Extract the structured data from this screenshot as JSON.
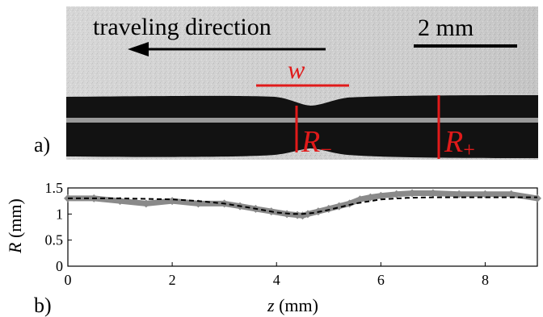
{
  "panel_a": {
    "label": "a)",
    "direction_text": "traveling direction",
    "scale_text": "2 mm",
    "width_symbol": "w",
    "r_minus_base": "R",
    "r_minus_sub": "−",
    "r_plus_base": "R",
    "r_plus_sub": "+",
    "annotation_color": "#e01a1a"
  },
  "panel_b": {
    "label": "b)"
  },
  "chart_data": {
    "type": "line",
    "xlabel_italic": "z",
    "xlabel_unit": " (mm)",
    "ylabel_italic": "R",
    "ylabel_unit": " (mm)",
    "xlim": [
      0,
      9
    ],
    "ylim": [
      0,
      1.5
    ],
    "xticks": [
      "0",
      "2",
      "4",
      "6",
      "8"
    ],
    "yticks": [
      "0",
      "0.5",
      "1",
      "1.5"
    ],
    "grid": false,
    "series": [
      {
        "style": "thick-gray-markers",
        "color": "#8a8a8a",
        "x": [
          0,
          0.5,
          1,
          1.5,
          2,
          2.5,
          3,
          3.3,
          3.6,
          3.9,
          4.2,
          4.4,
          4.5,
          4.6,
          4.8,
          5.0,
          5.2,
          5.4,
          5.6,
          5.8,
          6.0,
          6.3,
          6.6,
          7.0,
          7.5,
          8.0,
          8.5,
          9.0
        ],
        "y": [
          1.3,
          1.3,
          1.25,
          1.2,
          1.25,
          1.2,
          1.2,
          1.15,
          1.1,
          1.05,
          1.0,
          0.98,
          0.97,
          1.0,
          1.05,
          1.1,
          1.15,
          1.2,
          1.28,
          1.32,
          1.35,
          1.38,
          1.4,
          1.4,
          1.38,
          1.38,
          1.38,
          1.3
        ]
      },
      {
        "style": "dashed-black",
        "color": "#000000",
        "x": [
          0,
          1,
          2,
          2.5,
          3,
          3.5,
          4,
          4.3,
          4.5,
          4.7,
          5.0,
          5.5,
          6.0,
          6.5,
          7,
          8,
          9
        ],
        "y": [
          1.3,
          1.3,
          1.28,
          1.25,
          1.2,
          1.12,
          1.03,
          1.0,
          1.0,
          1.02,
          1.08,
          1.2,
          1.28,
          1.31,
          1.32,
          1.32,
          1.32
        ]
      }
    ]
  }
}
